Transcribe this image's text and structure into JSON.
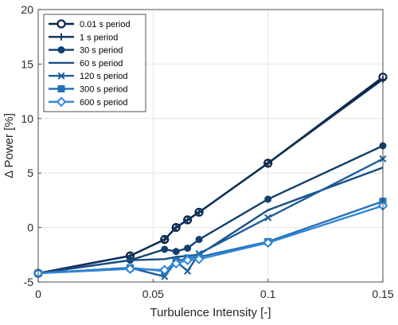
{
  "chart_data": {
    "type": "line",
    "title": "",
    "xlabel": "Turbulence Intensity [-]",
    "ylabel": "Δ Power [%]",
    "xlim": [
      0,
      0.15
    ],
    "ylim": [
      -5,
      20
    ],
    "xticks": [
      0,
      0.05,
      0.1,
      0.15
    ],
    "xtick_labels": [
      "0",
      "0.05",
      "0.1",
      "0.15"
    ],
    "yticks": [
      -5,
      0,
      5,
      10,
      15,
      20
    ],
    "ytick_labels": [
      "-5",
      "0",
      "5",
      "10",
      "15",
      "20"
    ],
    "grid": true,
    "legend_position": "top-left",
    "series": [
      {
        "name": "0.01 s period",
        "color": "#0b2545",
        "marker": "circle-open",
        "x": [
          0,
          0.04,
          0.055,
          0.06,
          0.065,
          0.07,
          0.1,
          0.15
        ],
        "y": [
          -4.2,
          -2.6,
          -1.1,
          0.0,
          0.7,
          1.4,
          5.9,
          13.8
        ]
      },
      {
        "name": "1 s period",
        "color": "#0d2f57",
        "marker": "plus",
        "x": [
          0,
          0.04,
          0.055,
          0.06,
          0.065,
          0.07,
          0.1,
          0.15
        ],
        "y": [
          -4.2,
          -2.6,
          -1.1,
          0.0,
          0.7,
          1.4,
          5.9,
          13.6
        ]
      },
      {
        "name": "30 s period",
        "color": "#12406e",
        "marker": "circle-filled",
        "x": [
          0,
          0.04,
          0.055,
          0.06,
          0.065,
          0.07,
          0.1,
          0.15
        ],
        "y": [
          -4.2,
          -3.0,
          -2.0,
          -2.2,
          -1.9,
          -1.1,
          2.6,
          7.5
        ]
      },
      {
        "name": "60 s period",
        "color": "#174f85",
        "marker": "none",
        "x": [
          0,
          0.04,
          0.055,
          0.06,
          0.065,
          0.07,
          0.1,
          0.15
        ],
        "y": [
          -4.2,
          -3.0,
          -2.9,
          -2.7,
          -2.6,
          -2.5,
          1.6,
          5.5
        ]
      },
      {
        "name": "120 s period",
        "color": "#1d5f9c",
        "marker": "x",
        "x": [
          0,
          0.04,
          0.055,
          0.06,
          0.065,
          0.07,
          0.1,
          0.15
        ],
        "y": [
          -4.2,
          -3.7,
          -4.5,
          -3.1,
          -4.0,
          -2.4,
          0.9,
          6.3
        ]
      },
      {
        "name": "300 s period",
        "color": "#2571b8",
        "marker": "square",
        "x": [
          0,
          0.04,
          0.055,
          0.06,
          0.065,
          0.07,
          0.1,
          0.15
        ],
        "y": [
          -4.2,
          -3.7,
          -4.0,
          -3.1,
          -2.8,
          -2.7,
          -1.3,
          2.4
        ]
      },
      {
        "name": "600 s period",
        "color": "#2f86d8",
        "marker": "diamond",
        "x": [
          0,
          0.04,
          0.055,
          0.06,
          0.065,
          0.07,
          0.1,
          0.15
        ],
        "y": [
          -4.2,
          -3.8,
          -3.9,
          -3.3,
          -3.0,
          -2.9,
          -1.4,
          2.0
        ]
      }
    ]
  }
}
